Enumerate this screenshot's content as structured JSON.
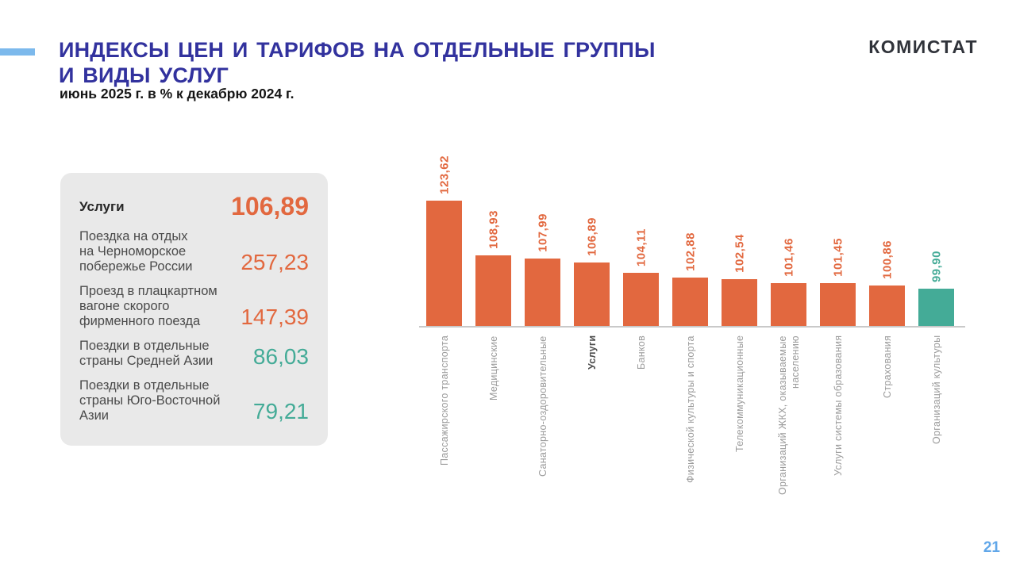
{
  "palette": {
    "orange": "#e2683f",
    "teal": "#44ab97",
    "title_blue": "#32329e",
    "accent_dash": "#7cb9ec",
    "page_number_blue": "#61a7e9",
    "category_gray": "#9b9b9b",
    "axis_gray": "#c9c9c9",
    "panel_bg": "#e9e9e9"
  },
  "header": {
    "title_line1": "ИНДЕКСЫ ЦЕН И ТАРИФОВ НА ОТДЕЛЬНЫЕ ГРУППЫ",
    "title_line2": "И ВИДЫ УСЛУГ",
    "subtitle": "июнь 2025 г. в % к декабрю 2024 г.",
    "logo": "КОМИСТАТ"
  },
  "summary_panel": {
    "rows": [
      {
        "label": "Услуги",
        "value": "106,89",
        "color": "orange",
        "emphasis": true
      },
      {
        "label": "Поездка на отдых\nна Черноморское\nпобережье России",
        "value": "257,23",
        "color": "orange",
        "emphasis": false
      },
      {
        "label": "Проезд в плацкартном\nвагоне скорого\nфирменного поезда",
        "value": "147,39",
        "color": "orange",
        "emphasis": false
      },
      {
        "label": "Поездки в отдельные\nстраны Средней Азии",
        "value": "86,03",
        "color": "teal",
        "emphasis": false
      },
      {
        "label": "Поездки в отдельные\nстраны Юго-Восточной Азии",
        "value": "79,21",
        "color": "teal",
        "emphasis": false
      }
    ]
  },
  "chart_data": {
    "type": "bar",
    "title": "Индексы цен и тарифов на отдельные группы и виды услуг, июнь 2025 г. в % к декабрю 2024 г.",
    "categories": [
      "Пассажирского транспорта",
      "Медицинские",
      "Санаторно-оздоровительные",
      "Услуги",
      "Банков",
      "Физической культуры и спорта",
      "Телекоммуникационные",
      "Организаций ЖКХ, оказываемые\nнаселению",
      "Услуги системы образования",
      "Страхования",
      "Организаций культуры"
    ],
    "values": [
      123.62,
      108.93,
      107.99,
      106.89,
      104.11,
      102.88,
      102.54,
      101.46,
      101.45,
      100.86,
      99.9
    ],
    "value_labels": [
      "123,62",
      "108,93",
      "107,99",
      "106,89",
      "104,11",
      "102,88",
      "102,54",
      "101,46",
      "101,45",
      "100,86",
      "99,90"
    ],
    "bar_colors": [
      "orange",
      "orange",
      "orange",
      "orange",
      "orange",
      "orange",
      "orange",
      "orange",
      "orange",
      "orange",
      "teal"
    ],
    "emphasized_category_index": 3,
    "ylim_estimate": [
      90,
      139
    ],
    "grid": false,
    "legend": false,
    "value_label_rotation": 90,
    "category_label_rotation": 90
  },
  "footer": {
    "page_number": "21"
  }
}
